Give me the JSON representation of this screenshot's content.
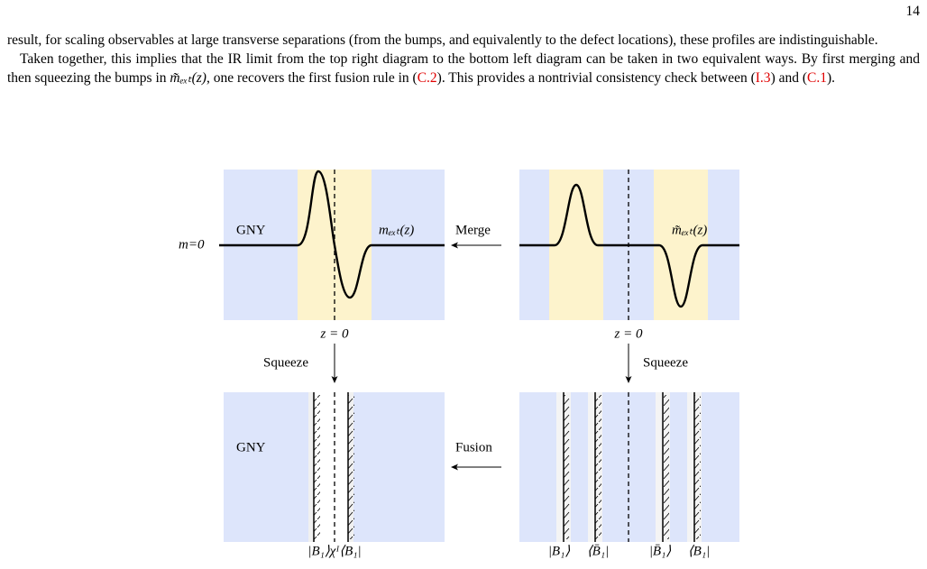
{
  "page_number": "14",
  "paragraphs": [
    {
      "segments": [
        {
          "text": "result, for scaling observables at large transverse separations (from the bumps, and equivalently to the defect locations), these profiles are indistinguishable."
        }
      ]
    },
    {
      "segments": [
        {
          "text": "Taken together, this implies that the IR limit from the top right diagram to the bottom left diagram can be taken in two equivalent ways. By first merging and then squeezing the bumps in "
        },
        {
          "math": "m̃ₑₓₜ(z)"
        },
        {
          "text": ", one recovers the first fusion rule in ("
        },
        {
          "ref": "C.2"
        },
        {
          "text": "). This provides a nontrivial consistency check between ("
        },
        {
          "ref": "I.3"
        },
        {
          "text": ") and ("
        },
        {
          "ref": "C.1"
        },
        {
          "text": ")."
        }
      ]
    }
  ],
  "figure": {
    "top_left": {
      "region": "GNY",
      "profile": "mₑₓₜ(z)",
      "baseline": "m=0",
      "origin": "z = 0"
    },
    "top_right": {
      "profile": "m̃ₑₓₜ(z)",
      "origin": "z = 0"
    },
    "merge": "Merge",
    "squeeze_left": "Squeeze",
    "squeeze_right": "Squeeze",
    "fusion": "Fusion",
    "bottom_left": {
      "region": "GNY",
      "label": "|B₁⟩χᴵ⟨B₁|"
    },
    "bottom_right": {
      "labels": [
        "|B₁⟩",
        "⟨B̄₁|",
        "|B̄₁⟩",
        "⟨B₁|"
      ]
    }
  }
}
